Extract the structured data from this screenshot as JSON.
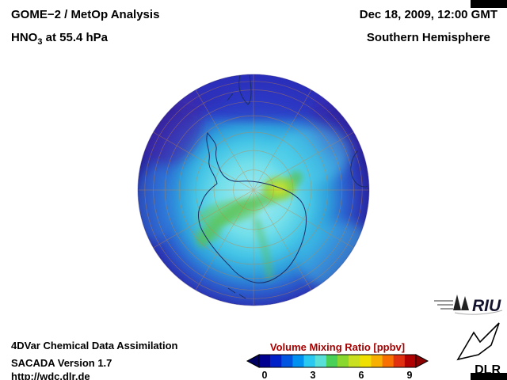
{
  "header": {
    "title": "GOME−2 / MetOp Analysis",
    "species": "HNO",
    "species_sub": "3",
    "level": " at 55.4 hPa",
    "datetime": "Dec 18, 2009, 12:00 GMT",
    "hemisphere": "Southern Hemisphere"
  },
  "colorbar": {
    "title": "Volume Mixing Ratio [ppbv]",
    "title_color": "#aa0000",
    "ticks": [
      "0",
      "3",
      "6",
      "9"
    ],
    "colors": [
      "#000090",
      "#0020c8",
      "#0055e0",
      "#0090f0",
      "#28c8f0",
      "#58e0d8",
      "#48d058",
      "#88d830",
      "#c8e020",
      "#f0e000",
      "#f8b000",
      "#f87000",
      "#e03010",
      "#b00000"
    ],
    "arrow_left_color": "#000060",
    "arrow_right_color": "#8b0000"
  },
  "footer": {
    "line1": "4DVar Chemical Data Assimilation",
    "line2": "SACADA Version 1.7",
    "line3": "http://wdc.dlr.de"
  },
  "logos": {
    "riu": "RIU",
    "dlr": "DLR"
  },
  "chart_data": {
    "type": "heatmap",
    "title": "GOME−2 / MetOp Analysis — HNO3 at 55.4 hPa",
    "datetime": "Dec 18, 2009, 12:00 GMT",
    "region": "Southern Hemisphere",
    "projection": "South-Pole-centered hemispheric disk with 10-degree latitude circles and 30-degree meridians, Antarctica coastline outlined",
    "colorbar": {
      "label": "Volume Mixing Ratio [ppbv]",
      "range": [
        0,
        10
      ],
      "ticks": [
        0,
        3,
        6,
        9
      ],
      "open_ended_arrows": true
    },
    "field_features": [
      {
        "area": "outer equatorward ring of disk (dark indigo/blue)",
        "value_ppbv": 0.6
      },
      {
        "area": "upper-left and upper-right limb (purple-indigo)",
        "value_ppbv": 0.4
      },
      {
        "area": "broad dark-blue band across top of disk reaching poleward",
        "value_ppbv": 1.3
      },
      {
        "area": "broad mid/high-latitude interior (cyan)",
        "value_ppbv": 2.8
      },
      {
        "area": "curved green band across Antarctica from peninsula eastward",
        "value_ppbv": 4.3
      },
      {
        "area": "bright yellow-green maximum just east of the pole",
        "value_ppbv": 5.2
      },
      {
        "area": "faint green plume trailing toward bottom of disk",
        "value_ppbv": 3.6
      },
      {
        "area": "lower-right limb (brighter blue, elevated relative to ring)",
        "value_ppbv": 1.8
      }
    ]
  }
}
